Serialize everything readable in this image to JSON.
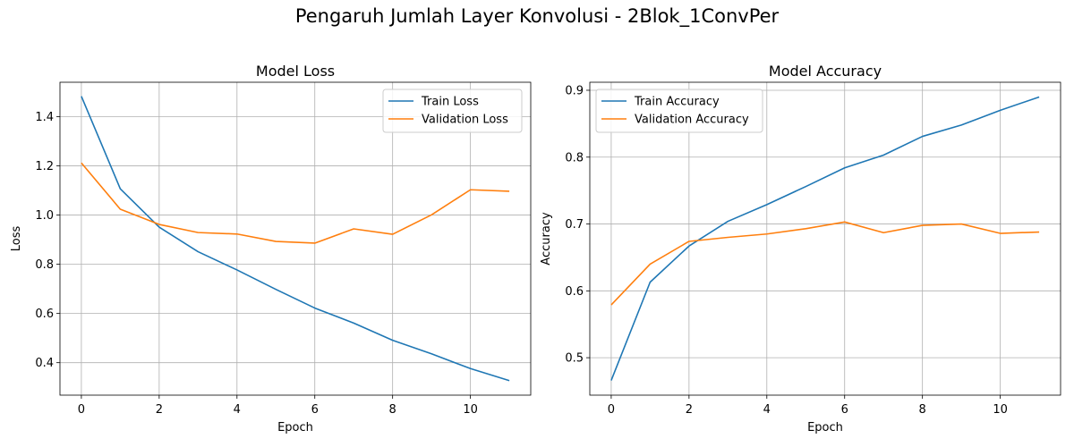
{
  "figure": {
    "suptitle": "Pengaruh Jumlah Layer Konvolusi - 2Blok_1ConvPer"
  },
  "colors": {
    "train": "#1f77b4",
    "validation": "#ff7f0e",
    "grid": "#b0b0b0"
  },
  "chart_data": [
    {
      "type": "line",
      "title": "Model Loss",
      "xlabel": "Epoch",
      "ylabel": "Loss",
      "grid": true,
      "legend_position": "top-right",
      "xlim": [
        -0.55,
        11.55
      ],
      "ylim": [
        0.268,
        1.54
      ],
      "xticks": [
        0,
        2,
        4,
        6,
        8,
        10
      ],
      "yticks": [
        0.4,
        0.6,
        0.8,
        1.0,
        1.2,
        1.4
      ],
      "x": [
        0,
        1,
        2,
        3,
        4,
        5,
        6,
        7,
        8,
        9,
        10,
        11
      ],
      "series": [
        {
          "name": "Train Loss",
          "color": "#1f77b4",
          "values": [
            1.483,
            1.107,
            0.951,
            0.851,
            0.777,
            0.698,
            0.622,
            0.561,
            0.491,
            0.436,
            0.376,
            0.327
          ]
        },
        {
          "name": "Validation Loss",
          "color": "#ff7f0e",
          "values": [
            1.212,
            1.024,
            0.962,
            0.929,
            0.923,
            0.893,
            0.886,
            0.944,
            0.922,
            1.001,
            1.103,
            1.097
          ]
        }
      ]
    },
    {
      "type": "line",
      "title": "Model Accuracy",
      "xlabel": "Epoch",
      "ylabel": "Accuracy",
      "grid": true,
      "legend_position": "top-left",
      "xlim": [
        -0.55,
        11.55
      ],
      "ylim": [
        0.444,
        0.912
      ],
      "xticks": [
        0,
        2,
        4,
        6,
        8,
        10
      ],
      "yticks": [
        0.5,
        0.6,
        0.7,
        0.8,
        0.9
      ],
      "x": [
        0,
        1,
        2,
        3,
        4,
        5,
        6,
        7,
        8,
        9,
        10,
        11
      ],
      "series": [
        {
          "name": "Train Accuracy",
          "color": "#1f77b4",
          "values": [
            0.466,
            0.613,
            0.667,
            0.704,
            0.729,
            0.756,
            0.784,
            0.803,
            0.831,
            0.848,
            0.87,
            0.89
          ]
        },
        {
          "name": "Validation Accuracy",
          "color": "#ff7f0e",
          "values": [
            0.579,
            0.64,
            0.674,
            0.68,
            0.685,
            0.693,
            0.703,
            0.687,
            0.698,
            0.7,
            0.686,
            0.688
          ]
        }
      ]
    }
  ]
}
